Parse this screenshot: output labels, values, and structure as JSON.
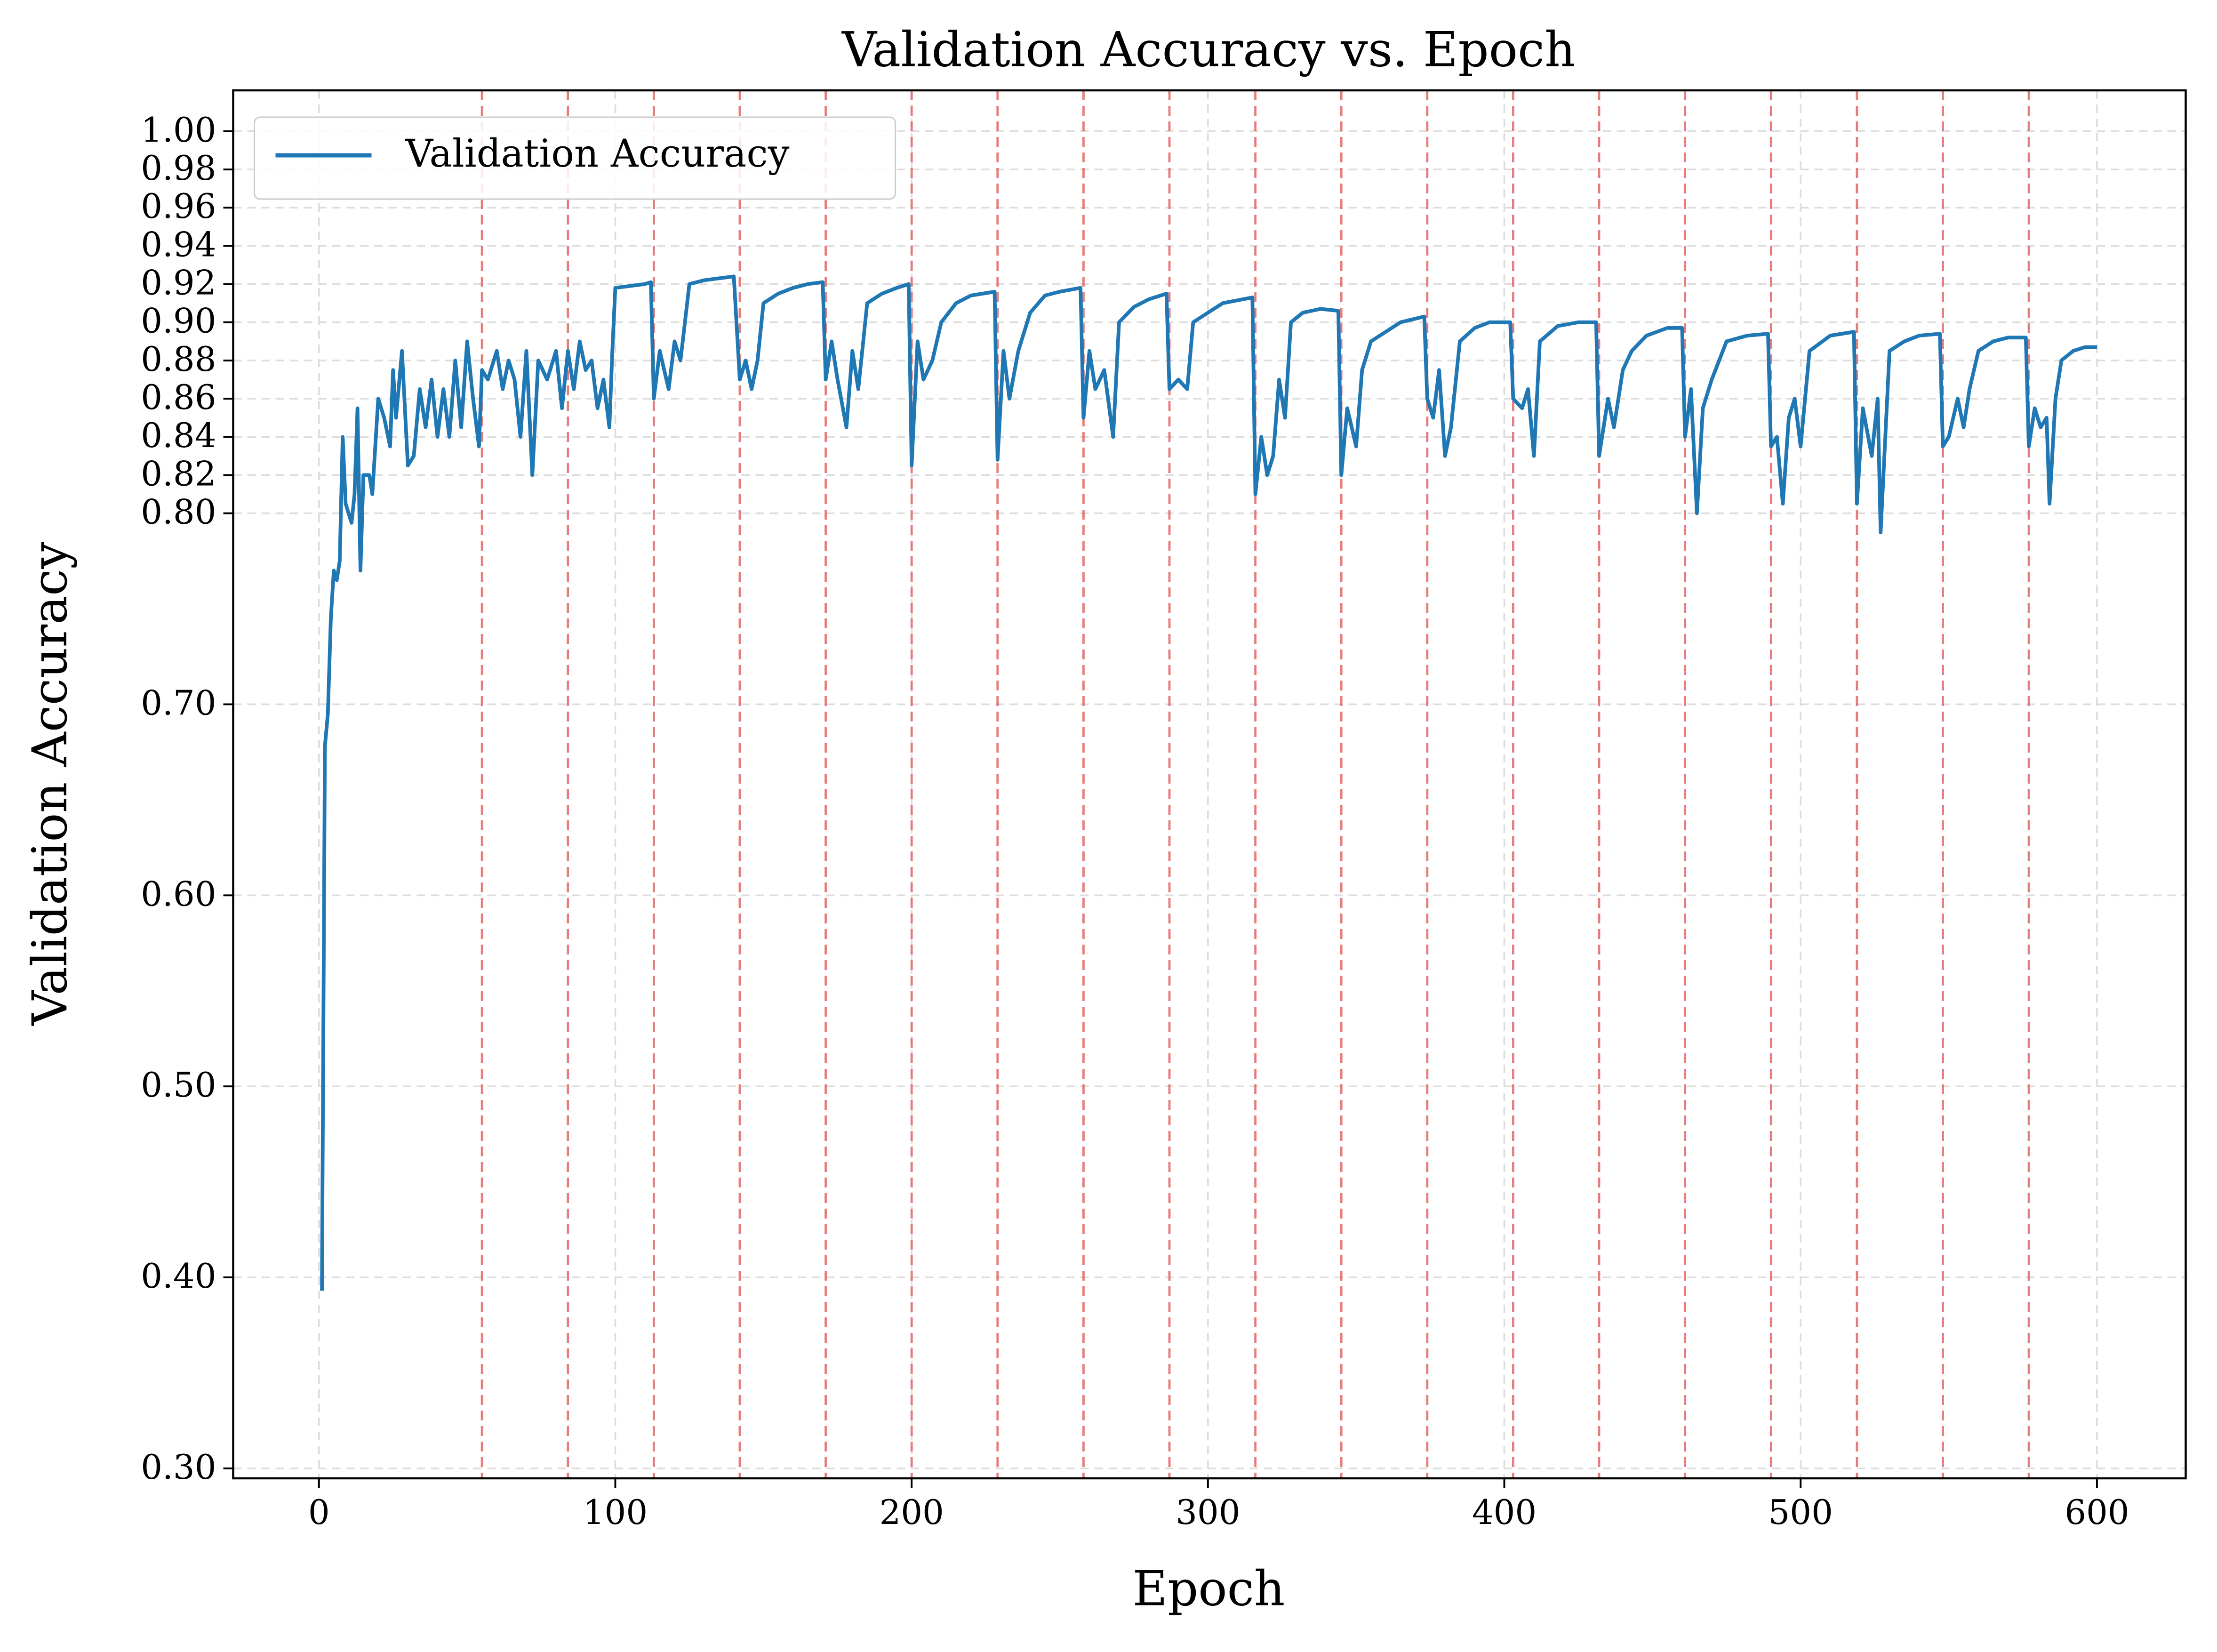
{
  "chart_data": {
    "type": "line",
    "title": "Validation Accuracy vs. Epoch",
    "x_label": "Epoch",
    "y_label": "Validation Accuracy",
    "xlim": [
      -28.95,
      629.95
    ],
    "ylim": [
      0.2948,
      1.0214
    ],
    "xticks": [
      0,
      100,
      200,
      300,
      400,
      500,
      600
    ],
    "yticks": [
      {
        "value": 0.3,
        "label": "0.30"
      },
      {
        "value": 0.4,
        "label": "0.40"
      },
      {
        "value": 0.5,
        "label": "0.50"
      },
      {
        "value": 0.6,
        "label": "0.60"
      },
      {
        "value": 0.7,
        "label": "0.70"
      },
      {
        "value": 0.8,
        "label": "0.80"
      },
      0.82,
      0.84,
      0.86,
      0.88,
      {
        "value": 0.9,
        "label": "0.90"
      },
      0.92,
      0.94,
      0.96,
      0.98,
      {
        "value": 1,
        "label": "1.00"
      }
    ],
    "grid": true,
    "legend_position": "upper-left",
    "vlines": [
      55,
      84,
      113,
      142,
      171,
      200,
      229,
      258,
      287,
      316,
      345,
      374,
      403,
      432,
      461,
      490,
      519,
      548,
      577
    ],
    "vline_color": "#e06666",
    "x": [
      1,
      2,
      3,
      4,
      5,
      6,
      7,
      8,
      9,
      10,
      11,
      12,
      13,
      14,
      15,
      17,
      18,
      20,
      22,
      24,
      25,
      26,
      28,
      30,
      32,
      34,
      36,
      38,
      40,
      42,
      44,
      46,
      48,
      50,
      52,
      54,
      55,
      57,
      60,
      62,
      64,
      66,
      68,
      70,
      72,
      74,
      77,
      80,
      82,
      84,
      86,
      88,
      90,
      92,
      94,
      96,
      98,
      99,
      100,
      105,
      110,
      112,
      113,
      115,
      118,
      120,
      122,
      125,
      130,
      135,
      140,
      142,
      144,
      146,
      148,
      150,
      155,
      160,
      165,
      170,
      171,
      173,
      175,
      178,
      180,
      182,
      185,
      190,
      195,
      199,
      200,
      202,
      204,
      207,
      210,
      215,
      220,
      228,
      229,
      231,
      233,
      236,
      240,
      245,
      250,
      257,
      258,
      260,
      262,
      265,
      268,
      270,
      275,
      280,
      286,
      287,
      290,
      293,
      295,
      300,
      305,
      315,
      316,
      318,
      320,
      322,
      324,
      326,
      328,
      332,
      338,
      344,
      345,
      347,
      350,
      352,
      355,
      360,
      365,
      373,
      374,
      376,
      378,
      380,
      382,
      385,
      390,
      395,
      402,
      403,
      406,
      408,
      410,
      412,
      418,
      425,
      431,
      432,
      435,
      437,
      440,
      443,
      448,
      455,
      460,
      461,
      463,
      465,
      467,
      470,
      475,
      482,
      489,
      490,
      492,
      494,
      496,
      498,
      500,
      503,
      510,
      518,
      519,
      521,
      524,
      526,
      527,
      530,
      535,
      540,
      547,
      548,
      550,
      553,
      555,
      557,
      560,
      565,
      570,
      576,
      577,
      579,
      581,
      583,
      584,
      586,
      588,
      592,
      596,
      600
    ],
    "series": [
      {
        "name": "Validation Accuracy",
        "color": "#1f77b4",
        "values": [
          0.393,
          0.678,
          0.695,
          0.745,
          0.77,
          0.765,
          0.775,
          0.84,
          0.805,
          0.8,
          0.795,
          0.81,
          0.855,
          0.77,
          0.82,
          0.82,
          0.81,
          0.86,
          0.85,
          0.835,
          0.875,
          0.85,
          0.885,
          0.825,
          0.83,
          0.865,
          0.845,
          0.87,
          0.84,
          0.865,
          0.84,
          0.88,
          0.845,
          0.89,
          0.86,
          0.835,
          0.875,
          0.87,
          0.885,
          0.865,
          0.88,
          0.87,
          0.84,
          0.885,
          0.82,
          0.88,
          0.87,
          0.885,
          0.855,
          0.885,
          0.865,
          0.89,
          0.875,
          0.88,
          0.855,
          0.87,
          0.845,
          0.885,
          0.918,
          0.919,
          0.92,
          0.921,
          0.86,
          0.885,
          0.865,
          0.89,
          0.88,
          0.92,
          0.922,
          0.923,
          0.924,
          0.87,
          0.88,
          0.865,
          0.88,
          0.91,
          0.915,
          0.918,
          0.92,
          0.921,
          0.87,
          0.89,
          0.87,
          0.845,
          0.885,
          0.865,
          0.91,
          0.915,
          0.918,
          0.92,
          0.825,
          0.89,
          0.87,
          0.88,
          0.9,
          0.91,
          0.914,
          0.916,
          0.828,
          0.885,
          0.86,
          0.885,
          0.905,
          0.914,
          0.916,
          0.918,
          0.85,
          0.885,
          0.865,
          0.875,
          0.84,
          0.9,
          0.908,
          0.912,
          0.915,
          0.865,
          0.87,
          0.865,
          0.9,
          0.905,
          0.91,
          0.913,
          0.81,
          0.84,
          0.82,
          0.83,
          0.87,
          0.85,
          0.9,
          0.905,
          0.907,
          0.906,
          0.82,
          0.855,
          0.835,
          0.875,
          0.89,
          0.895,
          0.9,
          0.903,
          0.86,
          0.85,
          0.875,
          0.83,
          0.845,
          0.89,
          0.897,
          0.9,
          0.9,
          0.86,
          0.855,
          0.865,
          0.83,
          0.89,
          0.898,
          0.9,
          0.9,
          0.83,
          0.86,
          0.845,
          0.875,
          0.885,
          0.893,
          0.897,
          0.897,
          0.84,
          0.865,
          0.8,
          0.855,
          0.87,
          0.89,
          0.893,
          0.894,
          0.835,
          0.84,
          0.805,
          0.85,
          0.86,
          0.835,
          0.885,
          0.893,
          0.895,
          0.805,
          0.855,
          0.83,
          0.86,
          0.79,
          0.885,
          0.89,
          0.893,
          0.894,
          0.835,
          0.84,
          0.86,
          0.845,
          0.865,
          0.885,
          0.89,
          0.892,
          0.892,
          0.835,
          0.855,
          0.845,
          0.85,
          0.805,
          0.86,
          0.88,
          0.885,
          0.887,
          0.887
        ]
      }
    ]
  }
}
